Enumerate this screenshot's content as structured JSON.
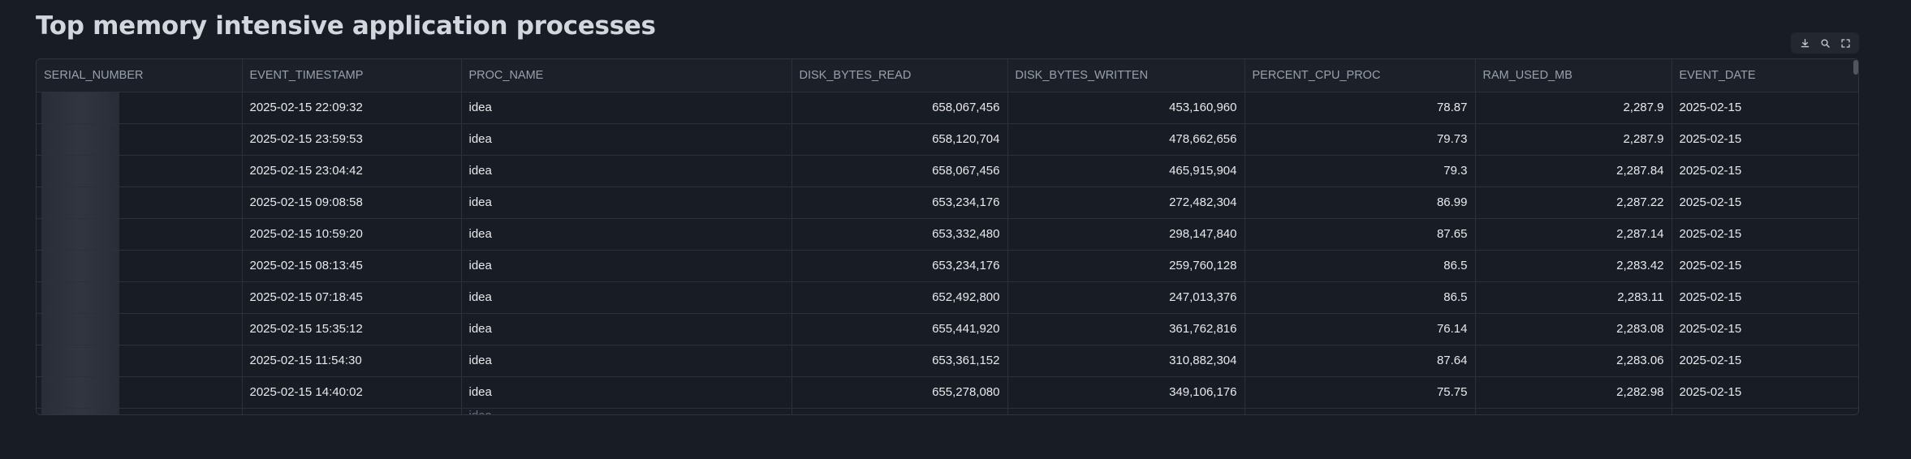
{
  "title": "Top memory intensive application processes",
  "toolbar": {
    "download_icon": "download-icon",
    "search_icon": "search-icon",
    "fullscreen_icon": "fullscreen-icon"
  },
  "table": {
    "columns": [
      "SERIAL_NUMBER",
      "EVENT_TIMESTAMP",
      "PROC_NAME",
      "DISK_BYTES_READ",
      "DISK_BYTES_WRITTEN",
      "PERCENT_CPU_PROC",
      "RAM_USED_MB",
      "EVENT_DATE"
    ],
    "rows": [
      [
        "",
        "2025-02-15 22:09:32",
        "idea",
        "658,067,456",
        "453,160,960",
        "78.87",
        "2,287.9",
        "2025-02-15"
      ],
      [
        "",
        "2025-02-15 23:59:53",
        "idea",
        "658,120,704",
        "478,662,656",
        "79.73",
        "2,287.9",
        "2025-02-15"
      ],
      [
        "",
        "2025-02-15 23:04:42",
        "idea",
        "658,067,456",
        "465,915,904",
        "79.3",
        "2,287.84",
        "2025-02-15"
      ],
      [
        "",
        "2025-02-15 09:08:58",
        "idea",
        "653,234,176",
        "272,482,304",
        "86.99",
        "2,287.22",
        "2025-02-15"
      ],
      [
        "",
        "2025-02-15 10:59:20",
        "idea",
        "653,332,480",
        "298,147,840",
        "87.65",
        "2,287.14",
        "2025-02-15"
      ],
      [
        "",
        "2025-02-15 08:13:45",
        "idea",
        "653,234,176",
        "259,760,128",
        "86.5",
        "2,283.42",
        "2025-02-15"
      ],
      [
        "",
        "2025-02-15 07:18:45",
        "idea",
        "652,492,800",
        "247,013,376",
        "86.5",
        "2,283.11",
        "2025-02-15"
      ],
      [
        "",
        "2025-02-15 15:35:12",
        "idea",
        "655,441,920",
        "361,762,816",
        "76.14",
        "2,283.08",
        "2025-02-15"
      ],
      [
        "",
        "2025-02-15 11:54:30",
        "idea",
        "653,361,152",
        "310,882,304",
        "87.64",
        "2,283.06",
        "2025-02-15"
      ],
      [
        "",
        "2025-02-15 14:40:02",
        "idea",
        "655,278,080",
        "349,106,176",
        "75.75",
        "2,282.98",
        "2025-02-15"
      ]
    ],
    "partial_row": [
      "",
      "",
      "idea",
      "",
      "",
      "",
      "",
      ""
    ]
  }
}
